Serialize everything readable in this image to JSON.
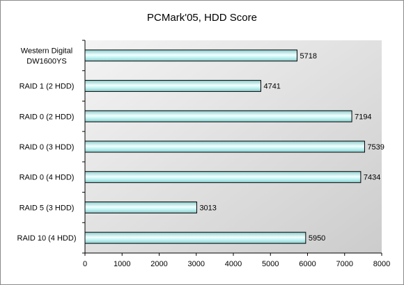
{
  "chart_data": {
    "type": "bar",
    "orientation": "horizontal",
    "title": "PCMark'05, HDD Score",
    "categories": [
      [
        "Western Digital",
        "DW1600YS"
      ],
      [
        "RAID 1 (2 HDD)"
      ],
      [
        "RAID 0 (2 HDD)"
      ],
      [
        "RAID 0 (3 HDD)"
      ],
      [
        "RAID 0 (4 HDD)"
      ],
      [
        "RAID 5 (3 HDD)"
      ],
      [
        "RAID 10 (4 HDD)"
      ]
    ],
    "values": [
      5718,
      4741,
      7194,
      7539,
      7434,
      3013,
      5950
    ],
    "xlim": [
      0,
      8000
    ],
    "xticks": [
      0,
      1000,
      2000,
      3000,
      4000,
      5000,
      6000,
      7000,
      8000
    ],
    "grid": false,
    "legend": "none",
    "colors": {
      "bar_fill_light": "#f2ffff",
      "bar_fill_mid": "#bff2f2",
      "bar_fill_dark": "#8ccccc",
      "bar_stroke": "#000000",
      "plot_bg_top": "#f4f4f4",
      "plot_bg_bottom": "#cccccc"
    }
  }
}
